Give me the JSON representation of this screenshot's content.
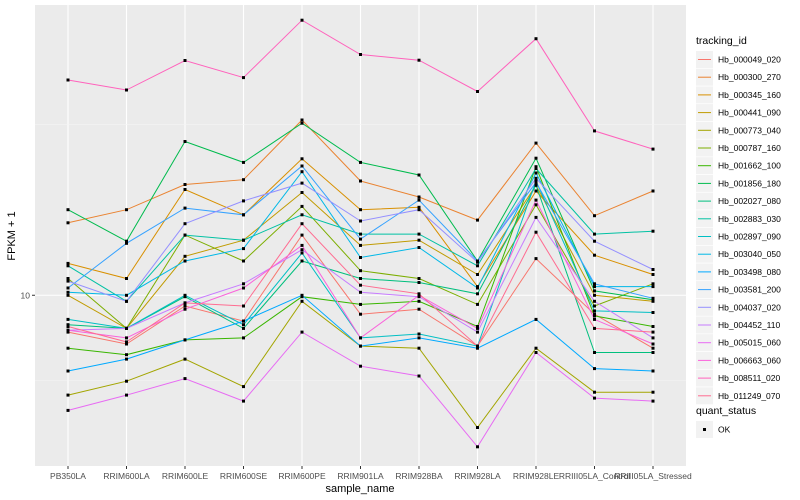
{
  "chart_data": {
    "type": "line",
    "xlabel": "sample_name",
    "ylabel": "FPKM + 1",
    "y_scale": "log10",
    "y_ticks": [
      10
    ],
    "y_tick_labels": [
      "10"
    ],
    "ylim_log10": [
      0.5,
      1.85
    ],
    "grid": true,
    "legend_position": "right",
    "categories": [
      "PB350LA",
      "RRIM600LA",
      "RRIM600LE",
      "RRIM600SE",
      "RRIM600PE",
      "RRIM901LA",
      "RRIM928BA",
      "RRIM928LA",
      "RRIM928LE",
      "RRIII05LA_Control",
      "RRIII05LA_Stressed"
    ],
    "series": [
      {
        "name": "Hb_000049_020",
        "color": "#F8766D",
        "values": [
          7.8,
          7.2,
          9.3,
          8.4,
          15.0,
          8.8,
          9.1,
          7.1,
          12.8,
          8.8,
          7.0
        ]
      },
      {
        "name": "Hb_000300_270",
        "color": "#EA8331",
        "values": [
          16.3,
          17.8,
          21.1,
          21.8,
          32.6,
          21.6,
          19.4,
          16.6,
          27.9,
          17.1,
          20.2
        ]
      },
      {
        "name": "Hb_000345_160",
        "color": "#D89000",
        "values": [
          12.4,
          11.2,
          20.4,
          17.2,
          25.1,
          17.8,
          18.1,
          10.6,
          20.2,
          13.1,
          11.5
        ]
      },
      {
        "name": "Hb_000441_090",
        "color": "#C09B00",
        "values": [
          10.0,
          8.0,
          13.0,
          14.5,
          20.0,
          14.0,
          14.5,
          11.5,
          21.0,
          10.0,
          9.6
        ]
      },
      {
        "name": "Hb_000773_040",
        "color": "#A3A500",
        "values": [
          5.1,
          5.6,
          6.5,
          5.4,
          9.6,
          7.1,
          7.0,
          4.1,
          7.0,
          5.2,
          5.2
        ]
      },
      {
        "name": "Hb_000787_160",
        "color": "#7CAE00",
        "values": [
          11.2,
          8.0,
          15.0,
          12.6,
          18.2,
          11.8,
          11.2,
          9.4,
          18.4,
          9.3,
          10.8
        ]
      },
      {
        "name": "Hb_001662_100",
        "color": "#39B600",
        "values": [
          7.0,
          6.7,
          7.4,
          7.5,
          9.9,
          9.4,
          9.6,
          8.1,
          23.8,
          8.7,
          8.1
        ]
      },
      {
        "name": "Hb_001856_180",
        "color": "#00BB4E",
        "values": [
          17.8,
          14.4,
          28.2,
          24.5,
          31.9,
          24.5,
          22.5,
          12.6,
          25.2,
          10.3,
          9.7
        ]
      },
      {
        "name": "Hb_002027_080",
        "color": "#00BF7D",
        "values": [
          8.2,
          8.0,
          9.9,
          8.0,
          12.6,
          11.2,
          10.9,
          10.1,
          21.0,
          6.8,
          6.8
        ]
      },
      {
        "name": "Hb_002883_030",
        "color": "#00C1A3",
        "values": [
          12.2,
          9.6,
          15.0,
          14.5,
          17.2,
          15.1,
          15.1,
          12.2,
          23.5,
          15.1,
          15.4
        ]
      },
      {
        "name": "Hb_002897_090",
        "color": "#00BFC4",
        "values": [
          8.5,
          8.0,
          10.0,
          8.2,
          13.3,
          7.5,
          7.7,
          7.1,
          21.6,
          9.0,
          8.9
        ]
      },
      {
        "name": "Hb_003040_050",
        "color": "#00B8E7",
        "values": [
          10.2,
          10.0,
          12.6,
          13.7,
          23.0,
          12.9,
          13.8,
          10.5,
          22.8,
          10.6,
          10.6
        ]
      },
      {
        "name": "Hb_003498_080",
        "color": "#00A9FF",
        "values": [
          6.0,
          6.5,
          7.4,
          8.4,
          10.0,
          7.1,
          7.5,
          7.0,
          8.5,
          6.1,
          6.0
        ]
      },
      {
        "name": "Hb_003581_200",
        "color": "#35A2FF",
        "values": [
          10.5,
          14.2,
          18.0,
          17.2,
          23.9,
          14.6,
          19.0,
          12.6,
          21.4,
          10.8,
          9.8
        ]
      },
      {
        "name": "Hb_004037_020",
        "color": "#9590FF",
        "values": [
          11.0,
          9.6,
          16.2,
          18.9,
          21.3,
          16.5,
          17.8,
          12.5,
          22.0,
          14.4,
          11.9
        ]
      },
      {
        "name": "Hb_004452_110",
        "color": "#C77CFF",
        "values": [
          7.9,
          8.0,
          9.5,
          10.8,
          13.6,
          10.2,
          9.9,
          7.8,
          16.9,
          9.6,
          7.5
        ]
      },
      {
        "name": "Hb_005015_060",
        "color": "#E76BF3",
        "values": [
          4.6,
          5.1,
          5.7,
          4.9,
          7.8,
          6.2,
          5.8,
          3.6,
          6.8,
          5.0,
          4.9
        ]
      },
      {
        "name": "Hb_006663_060",
        "color": "#FA62DB",
        "values": [
          7.9,
          7.5,
          9.1,
          10.5,
          14.0,
          7.5,
          10.0,
          8.0,
          19.0,
          8.5,
          7.2
        ]
      },
      {
        "name": "Hb_008511_020",
        "color": "#FF62BC",
        "values": [
          42.7,
          39.9,
          48.7,
          43.4,
          63.9,
          50.7,
          48.8,
          39.5,
          56.4,
          30.3,
          26.8
        ]
      },
      {
        "name": "Hb_011249_070",
        "color": "#FF6C91",
        "values": [
          8.1,
          7.3,
          9.5,
          9.3,
          16.2,
          10.7,
          10.1,
          7.1,
          15.3,
          8.0,
          7.8
        ]
      }
    ],
    "legend": {
      "color_title": "tracking_id",
      "shape_title": "quant_status",
      "shape_entries": [
        "OK"
      ]
    }
  }
}
